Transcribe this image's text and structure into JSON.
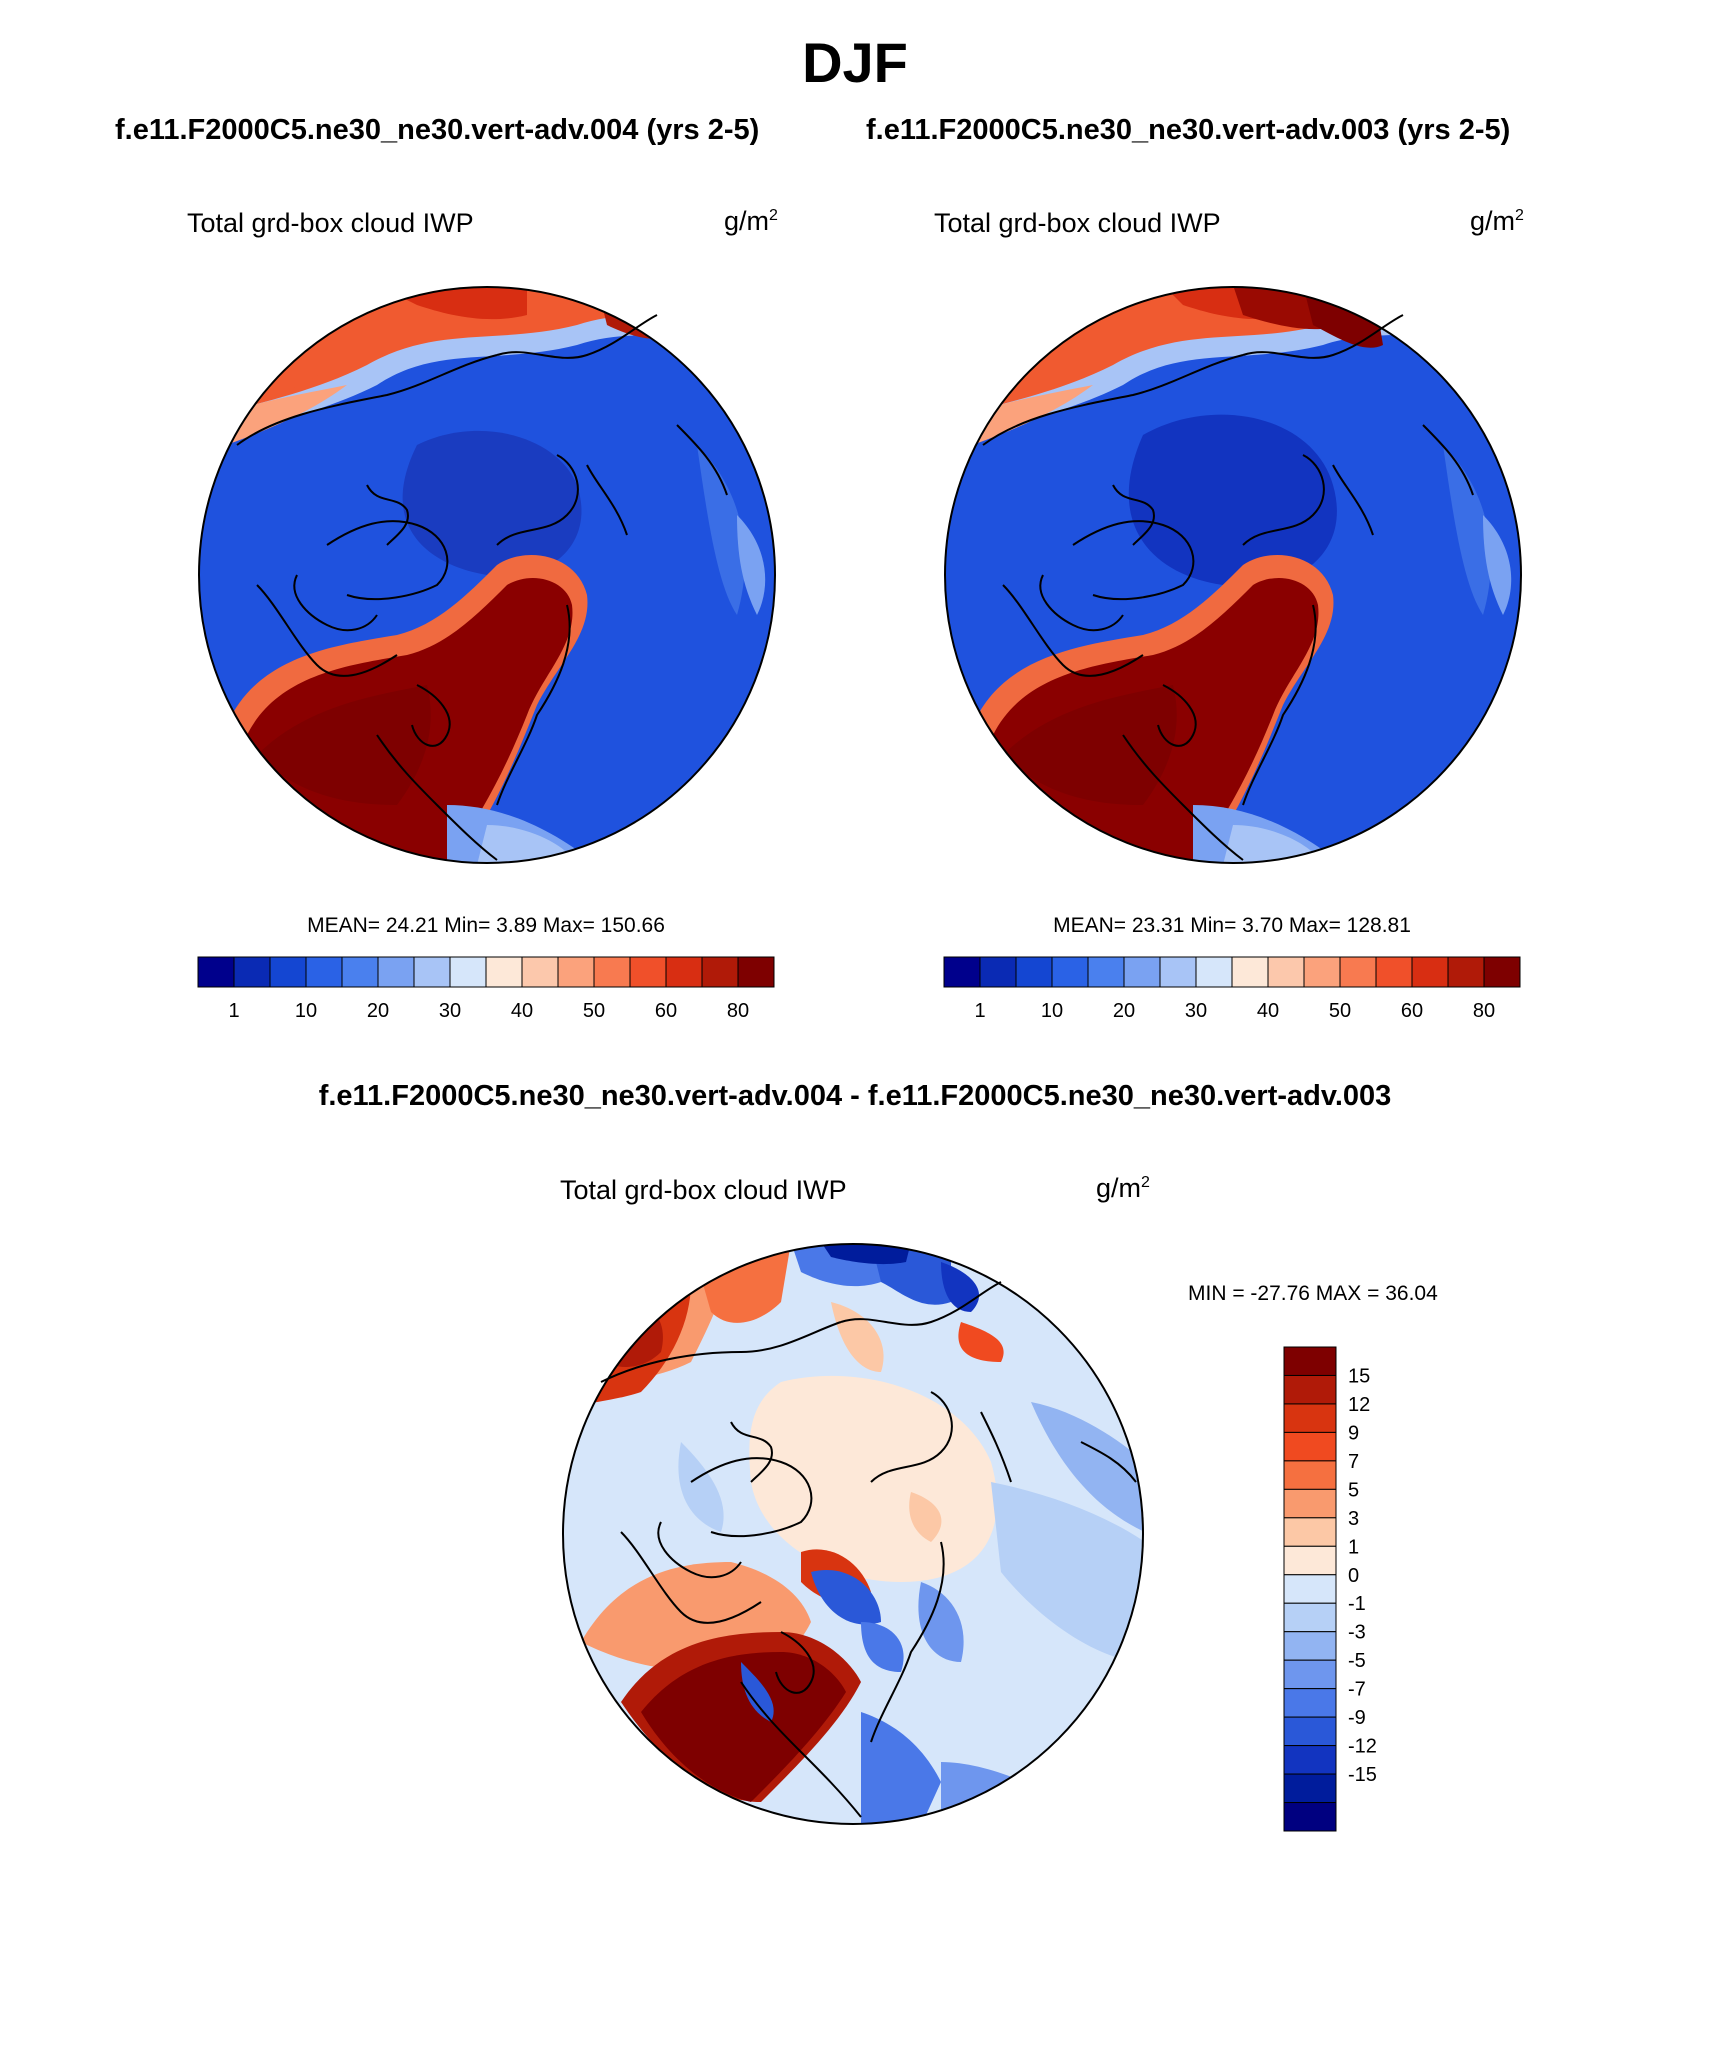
{
  "title": "DJF",
  "panels": [
    {
      "case": "f.e11.F2000C5.ne30_ne30.vert-adv.004 (yrs 2-5)",
      "variable": "Total grd-box cloud IWP",
      "units_base": "g/m",
      "units_exp": "2",
      "stats": "MEAN=  24.21  Min=   3.89  Max= 150.66"
    },
    {
      "case": "f.e11.F2000C5.ne30_ne30.vert-adv.003 (yrs 2-5)",
      "variable": "Total grd-box cloud IWP",
      "units_base": "g/m",
      "units_exp": "2",
      "stats": "MEAN=  23.31  Min=   3.70  Max= 128.81"
    }
  ],
  "diff": {
    "case": "f.e11.F2000C5.ne30_ne30.vert-adv.004 - f.e11.F2000C5.ne30_ne30.vert-adv.003",
    "variable": "Total grd-box cloud IWP",
    "units_base": "g/m",
    "units_exp": "2",
    "stats": "MIN = -27.76 MAX =  36.04"
  },
  "colorbar_abs": {
    "colors": [
      "#00008c",
      "#0a2ab4",
      "#1446d2",
      "#2a62e6",
      "#4a80ee",
      "#7aa2f2",
      "#a8c4f6",
      "#d6e6fa",
      "#fde8d8",
      "#fcc8ac",
      "#fba27c",
      "#f87a50",
      "#f0502a",
      "#d82e12",
      "#b01a08",
      "#7e0000"
    ],
    "ticks": [
      "1",
      "10",
      "20",
      "30",
      "40",
      "50",
      "60",
      "80"
    ]
  },
  "colorbar_diff": {
    "colors": [
      "#7e0000",
      "#b01a08",
      "#d83410",
      "#f04a20",
      "#f57040",
      "#f99a6e",
      "#fcc8a6",
      "#fde8d8",
      "#d6e6fa",
      "#b6d0f6",
      "#92b4f2",
      "#6e96ee",
      "#4a78e8",
      "#2a58d8",
      "#1234c0",
      "#001c9c",
      "#000080"
    ],
    "ticks": [
      "15",
      "12",
      "9",
      "7",
      "5",
      "3",
      "1",
      "0",
      "-1",
      "-3",
      "-5",
      "-7",
      "-9",
      "-12",
      "-15"
    ]
  }
}
